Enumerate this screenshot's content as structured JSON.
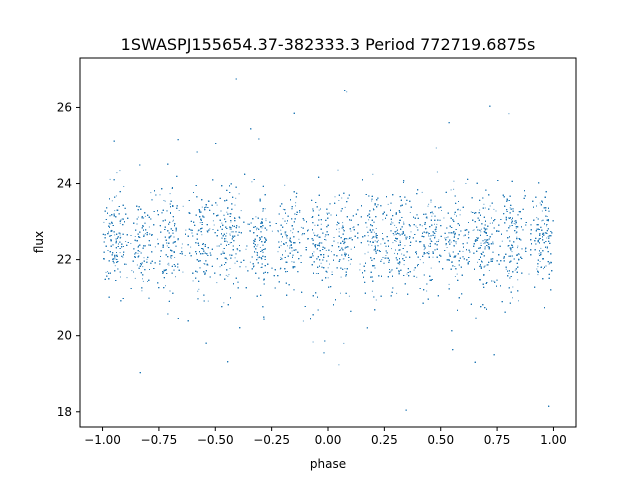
{
  "chart_data": {
    "type": "scatter",
    "title": "1SWASPJ155654.37-382333.3 Period 772719.6875s",
    "xlabel": "phase",
    "ylabel": "flux",
    "xlim": [
      -1.1,
      1.1
    ],
    "ylim": [
      17.6,
      27.3
    ],
    "xticks": [
      -1.0,
      -0.75,
      -0.5,
      -0.25,
      0.0,
      0.25,
      0.5,
      0.75,
      1.0
    ],
    "xtick_labels": [
      "−1.00",
      "−0.75",
      "−0.50",
      "−0.25",
      "0.00",
      "0.25",
      "0.50",
      "0.75",
      "1.00"
    ],
    "yticks": [
      18,
      20,
      22,
      24,
      26
    ],
    "ytick_labels": [
      "18",
      "20",
      "22",
      "24",
      "26"
    ],
    "grid": false,
    "marker_color": "#1f77b4",
    "series": [
      {
        "description_note": "",
        "x_range": [
          -1.0,
          1.0
        ],
        "center_flux": 22.5,
        "core_band": [
          21.0,
          24.0
        ],
        "outlier_range": [
          18.0,
          27.0
        ],
        "cluster_centers": [
          -0.95,
          -0.82,
          -0.7,
          -0.56,
          -0.44,
          -0.3,
          -0.17,
          -0.04,
          0.07,
          0.2,
          0.32,
          0.45,
          0.56,
          0.69,
          0.81,
          0.95
        ],
        "point_count": 12000
      }
    ]
  }
}
